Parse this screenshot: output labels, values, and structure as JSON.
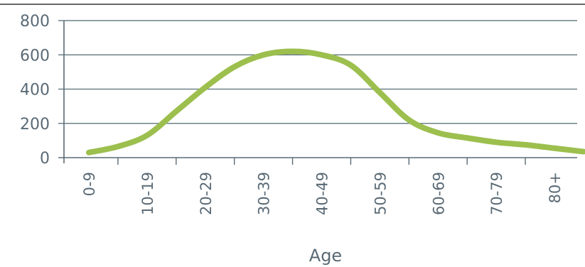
{
  "chart_data": {
    "type": "line",
    "title": "",
    "xlabel": "Age",
    "ylabel": "",
    "ylim": [
      0,
      800
    ],
    "yticks": [
      "0",
      "200",
      "400",
      "600",
      "800"
    ],
    "categories": [
      "0-9",
      "10-19",
      "20-29",
      "30-39",
      "40-49",
      "50-59",
      "60-69",
      "70-79",
      "80+"
    ],
    "series": [
      {
        "x": [
          0,
          0.5,
          1,
          1.5,
          2,
          2.5,
          3,
          3.5,
          4,
          4.5,
          5,
          5.5,
          6,
          6.5,
          7,
          7.5,
          8,
          8.5
        ],
        "values": [
          30,
          65,
          130,
          270,
          410,
          530,
          600,
          620,
          600,
          540,
          380,
          220,
          145,
          115,
          90,
          75,
          55,
          35
        ]
      }
    ],
    "grid": true,
    "colors": {
      "line": "#9cbf4e",
      "grid": "#6c8088",
      "axis": "#5a6a75",
      "text": "#5a6a75"
    }
  }
}
